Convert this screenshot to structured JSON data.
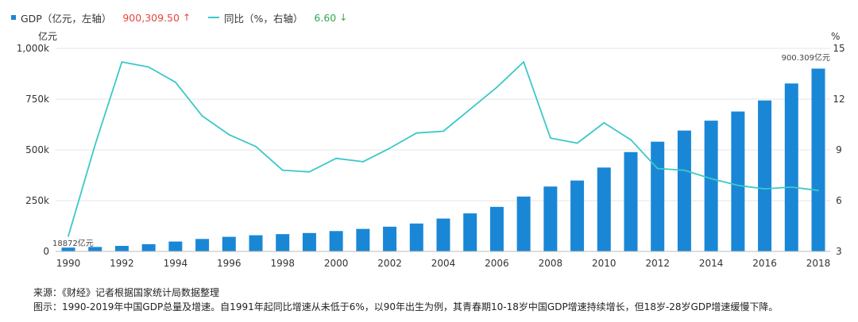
{
  "legend": {
    "gdp_label": "GDP（亿元，左轴）",
    "gdp_value": "900,309.50",
    "gdp_arrow": "↑",
    "growth_label": "同比（%，右轴）",
    "growth_value": "6.60",
    "growth_arrow": "↓"
  },
  "colors": {
    "bar": "#1a87d6",
    "line": "#3cc8c8",
    "up": "#e8443b",
    "down": "#2fa84f"
  },
  "caption": {
    "source": "来源：《财经》记者根据国家统计局数据整理",
    "note": "图示：1990-2019年中国GDP总量及增速。自1991年起同比增速从未低于6%，以90年出生为例，其青春期10-18岁中国GDP增速持续增长，但18岁-28岁GDP增速缓慢下降。"
  },
  "chart_data": {
    "type": "bar+line",
    "years": [
      1990,
      1991,
      1992,
      1993,
      1994,
      1995,
      1996,
      1997,
      1998,
      1999,
      2000,
      2001,
      2002,
      2003,
      2004,
      2005,
      2006,
      2007,
      2008,
      2009,
      2010,
      2011,
      2012,
      2013,
      2014,
      2015,
      2016,
      2017,
      2018
    ],
    "x_tick_labels": [
      "1990",
      "1992",
      "1994",
      "1996",
      "1998",
      "2000",
      "2002",
      "2004",
      "2006",
      "2008",
      "2010",
      "2012",
      "2014",
      "2016",
      "2018"
    ],
    "series": [
      {
        "name": "GDP（亿元，左轴）",
        "type": "bar",
        "axis": "left",
        "values": [
          18872,
          22006,
          27195,
          35673,
          48637,
          61339,
          71813,
          79715,
          85195,
          90564,
          100280,
          110863,
          121717,
          137422,
          161840,
          187318,
          219438,
          270232,
          319516,
          349081,
          413030,
          489300,
          540367,
          595244,
          643974,
          689052,
          743586,
          827122,
          900309
        ]
      },
      {
        "name": "同比（%，右轴）",
        "type": "line",
        "axis": "right",
        "values": [
          3.9,
          9.3,
          14.2,
          13.9,
          13.0,
          11.0,
          9.9,
          9.2,
          7.8,
          7.7,
          8.5,
          8.3,
          9.1,
          10.0,
          10.1,
          11.4,
          12.7,
          14.2,
          9.7,
          9.4,
          10.6,
          9.6,
          7.9,
          7.8,
          7.3,
          6.9,
          6.7,
          6.8,
          6.6
        ]
      }
    ],
    "left_axis": {
      "unit": "亿元",
      "ticks": [
        "0",
        "250k",
        "500k",
        "750k",
        "1,000k"
      ],
      "range": [
        0,
        1000000
      ]
    },
    "right_axis": {
      "unit": "%",
      "ticks": [
        "3",
        "6",
        "9",
        "12",
        "15"
      ],
      "range": [
        3,
        15
      ]
    },
    "annotations": {
      "first_bar": "18872亿元",
      "last_bar": "900.309亿元"
    },
    "grid": true,
    "legend_position": "top-left"
  }
}
